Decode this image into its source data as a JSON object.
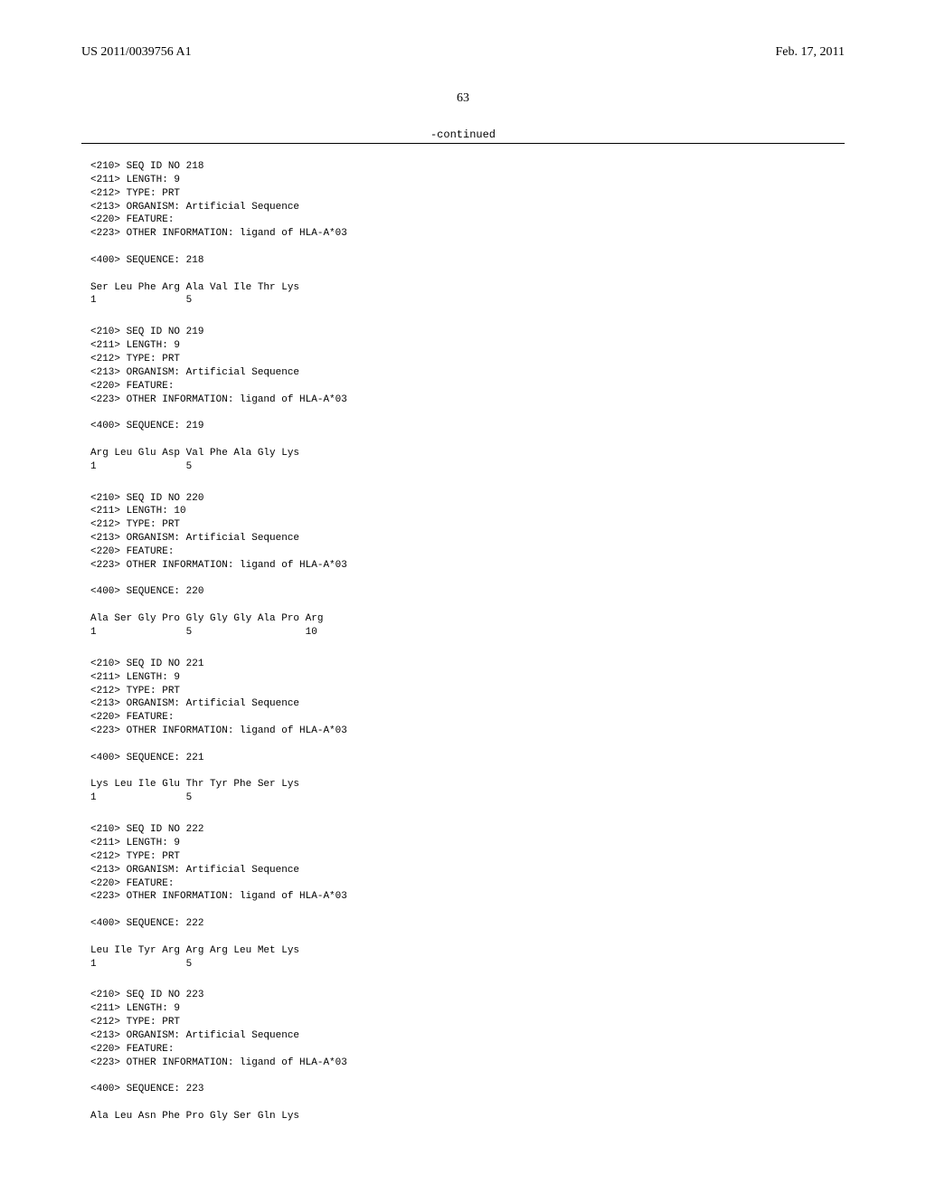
{
  "header": {
    "left": "US 2011/0039756 A1",
    "right": "Feb. 17, 2011"
  },
  "pageNumber": "63",
  "continuedLabel": "-continued",
  "sequences": [
    {
      "id": "218",
      "length": "9",
      "type": "PRT",
      "organism": "Artificial Sequence",
      "feature": "",
      "otherInfo": "ligand of HLA-A*03",
      "seqLine": "Ser Leu Phe Arg Ala Val Ile Thr Lys",
      "posLine": "1               5"
    },
    {
      "id": "219",
      "length": "9",
      "type": "PRT",
      "organism": "Artificial Sequence",
      "feature": "",
      "otherInfo": "ligand of HLA-A*03",
      "seqLine": "Arg Leu Glu Asp Val Phe Ala Gly Lys",
      "posLine": "1               5"
    },
    {
      "id": "220",
      "length": "10",
      "type": "PRT",
      "organism": "Artificial Sequence",
      "feature": "",
      "otherInfo": "ligand of HLA-A*03",
      "seqLine": "Ala Ser Gly Pro Gly Gly Gly Ala Pro Arg",
      "posLine": "1               5                   10"
    },
    {
      "id": "221",
      "length": "9",
      "type": "PRT",
      "organism": "Artificial Sequence",
      "feature": "",
      "otherInfo": "ligand of HLA-A*03",
      "seqLine": "Lys Leu Ile Glu Thr Tyr Phe Ser Lys",
      "posLine": "1               5"
    },
    {
      "id": "222",
      "length": "9",
      "type": "PRT",
      "organism": "Artificial Sequence",
      "feature": "",
      "otherInfo": "ligand of HLA-A*03",
      "seqLine": "Leu Ile Tyr Arg Arg Arg Leu Met Lys",
      "posLine": "1               5"
    },
    {
      "id": "223",
      "length": "9",
      "type": "PRT",
      "organism": "Artificial Sequence",
      "feature": "",
      "otherInfo": "ligand of HLA-A*03",
      "seqLine": "Ala Leu Asn Phe Pro Gly Ser Gln Lys",
      "posLine": ""
    }
  ],
  "labels": {
    "seqIdNo": "<210> SEQ ID NO ",
    "length": "<211> LENGTH: ",
    "type": "<212> TYPE: ",
    "organism": "<213> ORGANISM: ",
    "feature": "<220> FEATURE:",
    "otherInfo": "<223> OTHER INFORMATION: ",
    "sequence": "<400> SEQUENCE: "
  }
}
